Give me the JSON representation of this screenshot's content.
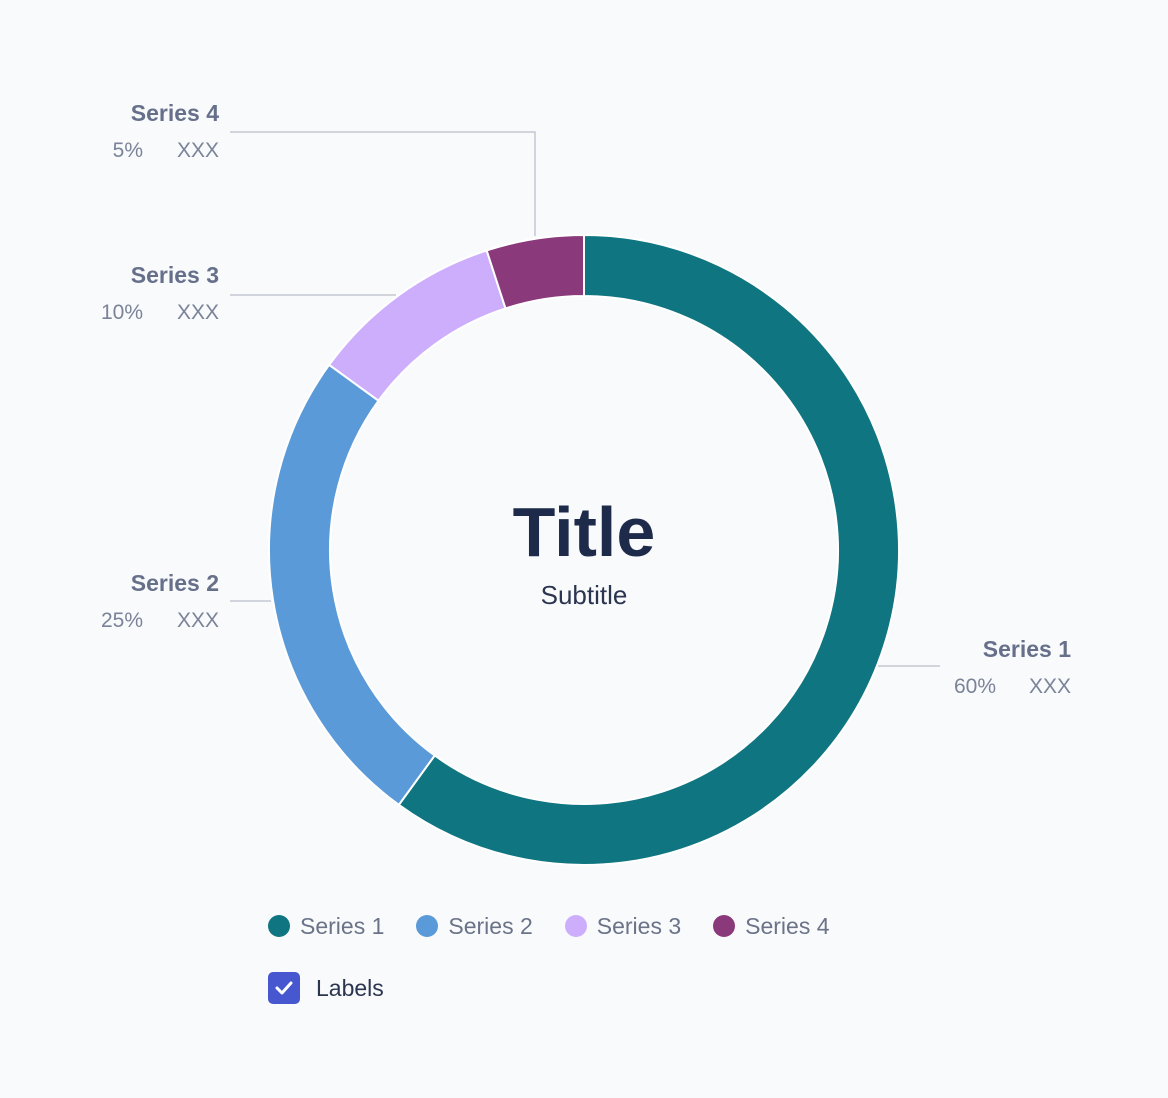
{
  "chart_data": {
    "type": "pie",
    "title": "Title",
    "subtitle": "Subtitle",
    "series": [
      {
        "name": "Series 1",
        "value": 60,
        "percent_label": "60%",
        "value_label": "XXX",
        "color": "#0f7580"
      },
      {
        "name": "Series 2",
        "value": 25,
        "percent_label": "25%",
        "value_label": "XXX",
        "color": "#5a9ad8"
      },
      {
        "name": "Series 3",
        "value": 10,
        "percent_label": "10%",
        "value_label": "XXX",
        "color": "#cdaefc"
      },
      {
        "name": "Series 4",
        "value": 5,
        "percent_label": "5%",
        "value_label": "XXX",
        "color": "#8a3a7a"
      }
    ],
    "legend_position": "bottom"
  },
  "legend": {
    "items": [
      "Series 1",
      "Series 2",
      "Series 3",
      "Series 4"
    ]
  },
  "controls": {
    "labels_toggle_label": "Labels",
    "labels_checked": true,
    "checkbox_color": "#4657d0"
  }
}
